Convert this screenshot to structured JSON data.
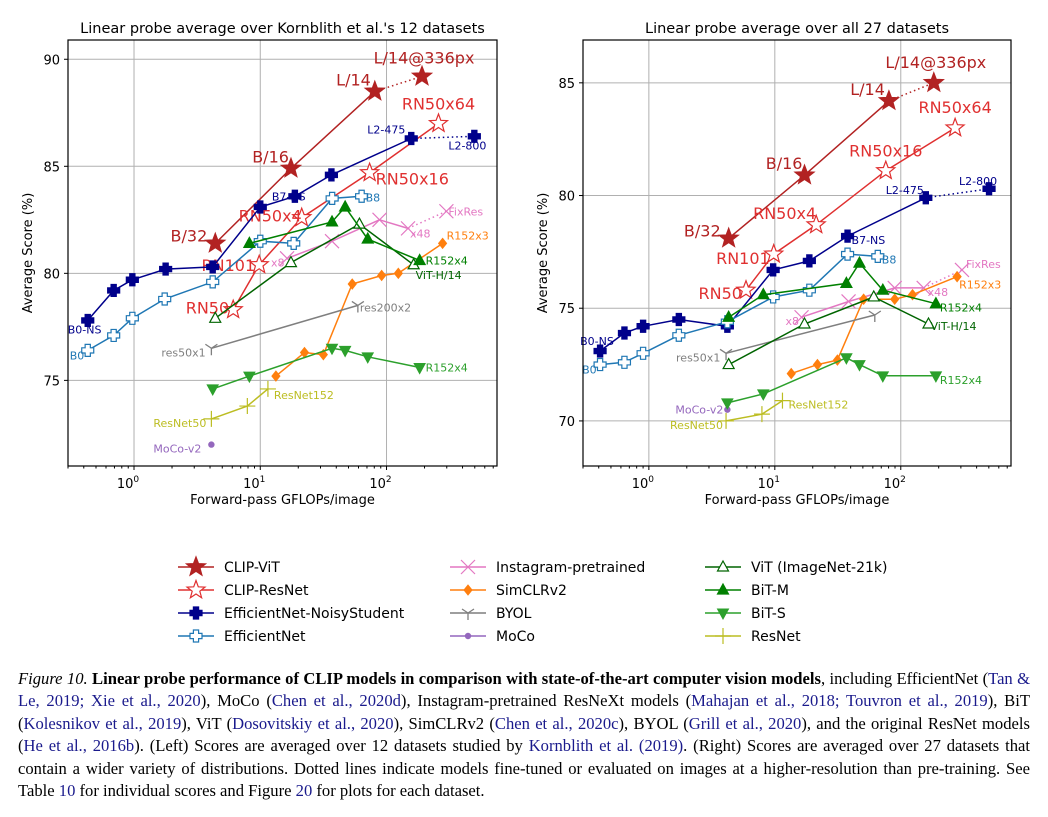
{
  "chart_data": [
    {
      "type": "line",
      "title": "Linear probe average over Kornblith et al.'s 12 datasets",
      "xlabel": "Forward-pass GFLOPs/image",
      "ylabel": "Average Score (%)",
      "xscale": "log",
      "xlim": [
        0.3,
        750
      ],
      "ylim": [
        71.0,
        90.9
      ],
      "xticks": [
        {
          "value": 1,
          "label": "10^0"
        },
        {
          "value": 10,
          "label": "10^1"
        },
        {
          "value": 100,
          "label": "10^2"
        }
      ],
      "yticks": [
        75,
        80,
        85,
        90
      ],
      "grid": true,
      "series": [
        {
          "name": "CLIP-ViT",
          "color": "#b22222",
          "marker": "star-filled",
          "x": [
            4.4,
            17.5,
            80.8
          ],
          "y": [
            81.4,
            84.9,
            88.5
          ],
          "hires": {
            "x": [
              80.8,
              191
            ],
            "y": [
              88.5,
              89.2
            ]
          },
          "labels": [
            {
              "i": 0,
              "text": "B/32"
            },
            {
              "i": 1,
              "text": "B/16"
            },
            {
              "i": 2,
              "text": "L/14"
            },
            {
              "hires": 1,
              "text": "L/14@336px"
            }
          ]
        },
        {
          "name": "CLIP-ResNet",
          "color": "#e03030",
          "marker": "star-open",
          "x": [
            6.1,
            9.8,
            21.3,
            73.5,
            258
          ],
          "y": [
            78.3,
            80.4,
            82.6,
            84.7,
            87.0
          ],
          "labels": [
            {
              "i": 0,
              "text": "RN50"
            },
            {
              "i": 1,
              "text": "RN101"
            },
            {
              "i": 2,
              "text": "RN50x4"
            },
            {
              "i": 3,
              "text": "RN50x16"
            },
            {
              "i": 4,
              "text": "RN50x64"
            }
          ]
        },
        {
          "name": "EfficientNet-NoisyStudent",
          "color": "#00008b",
          "marker": "plus-filled",
          "x": [
            0.43,
            0.69,
            0.97,
            1.78,
            4.2,
            10,
            18.8,
            36.6,
            157
          ],
          "y": [
            77.8,
            79.2,
            79.7,
            80.2,
            80.3,
            83.1,
            83.6,
            84.6,
            86.3
          ],
          "hires": {
            "x": [
              157,
              496
            ],
            "y": [
              86.3,
              86.4
            ]
          },
          "labels": [
            {
              "i": 0,
              "text": "B0-NS"
            },
            {
              "i": 6,
              "text": "B7-NS"
            },
            {
              "i": 8,
              "text": "L2-475"
            },
            {
              "hires": 1,
              "text": "L2-800"
            }
          ]
        },
        {
          "name": "EfficientNet",
          "color": "#1f77b4",
          "marker": "plus-open",
          "x": [
            0.43,
            0.69,
            0.97,
            1.75,
            4.2,
            10,
            18.4,
            37.1,
            63.5
          ],
          "y": [
            76.4,
            77.1,
            77.9,
            78.8,
            79.6,
            81.5,
            81.4,
            83.5,
            83.6
          ],
          "labels": [
            {
              "i": 0,
              "text": "B0"
            },
            {
              "i": 8,
              "text": "B8"
            }
          ]
        },
        {
          "name": "Instagram-pretrained",
          "color": "#e377c2",
          "marker": "x",
          "x": [
            16.3,
            37,
            88,
            148
          ],
          "y": [
            80.7,
            81.5,
            82.5,
            82.1
          ],
          "hires": {
            "x": [
              148,
              298
            ],
            "y": [
              82.1,
              82.9
            ]
          },
          "labels": [
            {
              "i": 0,
              "text": "x8"
            },
            {
              "i": 3,
              "text": "x48"
            },
            {
              "hires": 1,
              "text": "FixRes"
            }
          ]
        },
        {
          "name": "SimCLRv2",
          "color": "#ff7f0e",
          "marker": "diamond",
          "x": [
            13.3,
            22.4,
            31.6,
            53.5,
            91.5,
            124,
            278
          ],
          "y": [
            75.2,
            76.3,
            76.2,
            79.5,
            79.9,
            80.0,
            81.4
          ],
          "labels": [
            {
              "i": 6,
              "text": "R152x3"
            }
          ]
        },
        {
          "name": "BYOL",
          "color": "#7f7f7f",
          "marker": "tri-down",
          "x": [
            4.1,
            59.3
          ],
          "y": [
            76.5,
            78.5
          ],
          "labels": [
            {
              "i": 0,
              "text": "res50x1"
            },
            {
              "i": 1,
              "text": "res200x2"
            }
          ]
        },
        {
          "name": "MoCo",
          "color": "#9467bd",
          "marker": "dot",
          "x": [
            4.1
          ],
          "y": [
            72.0
          ],
          "labels": [
            {
              "i": 0,
              "text": "MoCo-v2"
            }
          ]
        },
        {
          "name": "ViT (ImageNet-21k)",
          "color": "#006400",
          "marker": "triangle-open",
          "x": [
            4.4,
            17.5,
            61,
            164
          ],
          "y": [
            77.9,
            80.5,
            82.3,
            80.4
          ],
          "labels": [
            {
              "i": 3,
              "text": "ViT-H/14"
            }
          ]
        },
        {
          "name": "BiT-M",
          "color": "#008000",
          "marker": "triangle-filled",
          "x": [
            8.2,
            37,
            47,
            71,
            183
          ],
          "y": [
            81.4,
            82.4,
            83.1,
            81.6,
            80.6
          ],
          "labels": [
            {
              "i": 4,
              "text": "R152x4"
            }
          ]
        },
        {
          "name": "BiT-S",
          "color": "#2ca02c",
          "marker": "triangle-down",
          "x": [
            4.2,
            8.2,
            37,
            47,
            71,
            183
          ],
          "y": [
            74.6,
            75.2,
            76.5,
            76.4,
            76.1,
            75.6
          ],
          "labels": [
            {
              "i": 5,
              "text": "R152x4"
            }
          ]
        },
        {
          "name": "ResNet",
          "color": "#bcbd22",
          "marker": "plus-thin",
          "x": [
            4.1,
            7.9,
            11.5
          ],
          "y": [
            73.2,
            73.8,
            74.6
          ],
          "labels": [
            {
              "i": 0,
              "text": "ResNet50"
            },
            {
              "i": 2,
              "text": "ResNet152"
            }
          ]
        }
      ]
    },
    {
      "type": "line",
      "title": "Linear probe average over all 27 datasets",
      "xlabel": "Forward-pass GFLOPs/image",
      "ylabel": "Average Score (%)",
      "xscale": "log",
      "xlim": [
        0.3,
        750
      ],
      "ylim": [
        68.0,
        86.9
      ],
      "xticks": [
        {
          "value": 1,
          "label": "10^0"
        },
        {
          "value": 10,
          "label": "10^1"
        },
        {
          "value": 100,
          "label": "10^2"
        }
      ],
      "yticks": [
        70,
        75,
        80,
        85
      ],
      "grid": true,
      "series": [
        {
          "name": "CLIP-ViT",
          "color": "#b22222",
          "marker": "star-filled",
          "x": [
            4.3,
            17.2,
            80.5
          ],
          "y": [
            78.1,
            80.9,
            84.2
          ],
          "hires": {
            "x": [
              80.5,
              183
            ],
            "y": [
              84.2,
              85.0
            ]
          },
          "labels": [
            {
              "i": 0,
              "text": "B/32"
            },
            {
              "i": 1,
              "text": "B/16"
            },
            {
              "i": 2,
              "text": "L/14"
            },
            {
              "hires": 1,
              "text": "L/14@336px"
            }
          ]
        },
        {
          "name": "CLIP-ResNet",
          "color": "#e03030",
          "marker": "star-open",
          "x": [
            5.9,
            9.8,
            21.3,
            76,
            270
          ],
          "y": [
            75.8,
            77.4,
            78.7,
            81.1,
            83.0
          ],
          "labels": [
            {
              "i": 0,
              "text": "RN50"
            },
            {
              "i": 1,
              "text": "RN101"
            },
            {
              "i": 2,
              "text": "RN50x4"
            },
            {
              "i": 3,
              "text": "RN50x16"
            },
            {
              "i": 4,
              "text": "RN50x64"
            }
          ]
        },
        {
          "name": "EfficientNet-NoisyStudent",
          "color": "#00008b",
          "marker": "plus-filled",
          "x": [
            0.41,
            0.64,
            0.9,
            1.73,
            4.2,
            9.7,
            18.8,
            37.8,
            158
          ],
          "y": [
            73.1,
            73.9,
            74.2,
            74.5,
            74.2,
            76.7,
            77.1,
            78.2,
            79.9
          ],
          "hires": {
            "x": [
              158,
              502
            ],
            "y": [
              79.9,
              80.3
            ]
          },
          "labels": [
            {
              "i": 0,
              "text": "B0-NS"
            },
            {
              "i": 7,
              "text": "B7-NS"
            },
            {
              "i": 8,
              "text": "L2-475"
            },
            {
              "hires": 1,
              "text": "L2-800"
            }
          ]
        },
        {
          "name": "EfficientNet",
          "color": "#1f77b4",
          "marker": "plus-open",
          "x": [
            0.41,
            0.64,
            0.9,
            1.73,
            4.2,
            9.7,
            18.8,
            37.8,
            65.7
          ],
          "y": [
            72.5,
            72.6,
            73.0,
            73.8,
            74.4,
            75.5,
            75.8,
            77.4,
            77.3
          ],
          "labels": [
            {
              "i": 0,
              "text": "B0"
            },
            {
              "i": 8,
              "text": "B8"
            }
          ]
        },
        {
          "name": "Instagram-pretrained",
          "color": "#e377c2",
          "marker": "x",
          "x": [
            16.3,
            38.5,
            89.5,
            152
          ],
          "y": [
            74.6,
            75.3,
            75.9,
            75.9
          ],
          "hires": {
            "x": [
              152,
              306
            ],
            "y": [
              75.9,
              76.7
            ]
          },
          "labels": [
            {
              "i": 0,
              "text": "x8"
            },
            {
              "i": 3,
              "text": "x48"
            },
            {
              "hires": 1,
              "text": "FixRes"
            }
          ]
        },
        {
          "name": "SimCLRv2",
          "color": "#ff7f0e",
          "marker": "diamond",
          "x": [
            13.5,
            21.8,
            31.4,
            50.7,
            89.5,
            124,
            280
          ],
          "y": [
            72.1,
            72.5,
            72.7,
            75.4,
            75.4,
            75.6,
            76.4
          ],
          "labels": [
            {
              "i": 6,
              "text": "R152x3"
            }
          ]
        },
        {
          "name": "BYOL",
          "color": "#7f7f7f",
          "marker": "tri-down",
          "x": [
            4.1,
            62.2
          ],
          "y": [
            73.0,
            74.7
          ],
          "labels": [
            {
              "i": 0,
              "text": "res50x1"
            }
          ]
        },
        {
          "name": "MoCo",
          "color": "#9467bd",
          "marker": "dot",
          "x": [
            4.2
          ],
          "y": [
            70.5
          ],
          "labels": [
            {
              "i": 0,
              "text": "MoCo-v2"
            }
          ]
        },
        {
          "name": "ViT (ImageNet-21k)",
          "color": "#006400",
          "marker": "triangle-open",
          "x": [
            4.3,
            17.2,
            61,
            166
          ],
          "y": [
            72.5,
            74.3,
            75.5,
            74.3
          ],
          "labels": [
            {
              "i": 3,
              "text": "ViT-H/14"
            }
          ]
        },
        {
          "name": "BiT-M",
          "color": "#008000",
          "marker": "triangle-filled",
          "x": [
            4.3,
            8.1,
            37,
            47,
            72,
            190
          ],
          "y": [
            74.6,
            75.6,
            76.1,
            77.0,
            75.8,
            75.2
          ],
          "labels": [
            {
              "i": 5,
              "text": "R152x4"
            }
          ]
        },
        {
          "name": "BiT-S",
          "color": "#2ca02c",
          "marker": "triangle-down",
          "x": [
            4.2,
            8.1,
            37,
            47,
            72,
            190
          ],
          "y": [
            70.8,
            71.2,
            72.8,
            72.5,
            72.0,
            72.0
          ],
          "labels": [
            {
              "i": 5,
              "text": "R152x4"
            }
          ]
        },
        {
          "name": "ResNet",
          "color": "#bcbd22",
          "marker": "plus-thin",
          "x": [
            4.1,
            7.9,
            11.5
          ],
          "y": [
            70.0,
            70.3,
            70.9
          ],
          "labels": [
            {
              "i": 0,
              "text": "ResNet50"
            },
            {
              "i": 2,
              "text": "ResNet152"
            }
          ]
        }
      ]
    }
  ],
  "legend": {
    "placement": "bottom-center",
    "columns": [
      [
        "CLIP-ViT",
        "CLIP-ResNet",
        "EfficientNet-NoisyStudent",
        "EfficientNet"
      ],
      [
        "Instagram-pretrained",
        "SimCLRv2",
        "BYOL",
        "MoCo"
      ],
      [
        "ViT (ImageNet-21k)",
        "BiT-M",
        "BiT-S",
        "ResNet"
      ]
    ]
  },
  "caption": {
    "figure_label": "Figure 10.",
    "bold_title": "Linear probe performance of CLIP models in comparison with state-of-the-art computer vision models",
    "parts": [
      {
        "t": ", including EfficientNet (",
        "c": false
      },
      {
        "t": "Tan & Le, 2019; Xie et al., 2020",
        "c": true
      },
      {
        "t": "), MoCo (",
        "c": false
      },
      {
        "t": "Chen et al., 2020d",
        "c": true
      },
      {
        "t": "), Instagram-pretrained ResNeXt models (",
        "c": false
      },
      {
        "t": "Mahajan et al., 2018; Touvron et al., 2019",
        "c": true
      },
      {
        "t": "), BiT (",
        "c": false
      },
      {
        "t": "Kolesnikov et al., 2019",
        "c": true
      },
      {
        "t": "), ViT (",
        "c": false
      },
      {
        "t": "Dosovitskiy et al., 2020",
        "c": true
      },
      {
        "t": "), SimCLRv2 (",
        "c": false
      },
      {
        "t": "Chen et al., 2020c",
        "c": true
      },
      {
        "t": "), BYOL (",
        "c": false
      },
      {
        "t": "Grill et al., 2020",
        "c": true
      },
      {
        "t": "), and the original ResNet models (",
        "c": false
      },
      {
        "t": "He et al., 2016b",
        "c": true
      },
      {
        "t": "). (Left) Scores are averaged over 12 datasets studied by ",
        "c": false
      },
      {
        "t": "Kornblith et al. (2019)",
        "c": true
      },
      {
        "t": ". (Right) Scores are averaged over 27 datasets that contain a wider variety of distributions. Dotted lines indicate models fine-tuned or evaluated on images at a higher-resolution than pre-training. See Table ",
        "c": false
      },
      {
        "t": "10",
        "c": true
      },
      {
        "t": " for individual scores and Figure ",
        "c": false
      },
      {
        "t": "20",
        "c": true
      },
      {
        "t": " for plots for each dataset.",
        "c": false
      }
    ]
  }
}
